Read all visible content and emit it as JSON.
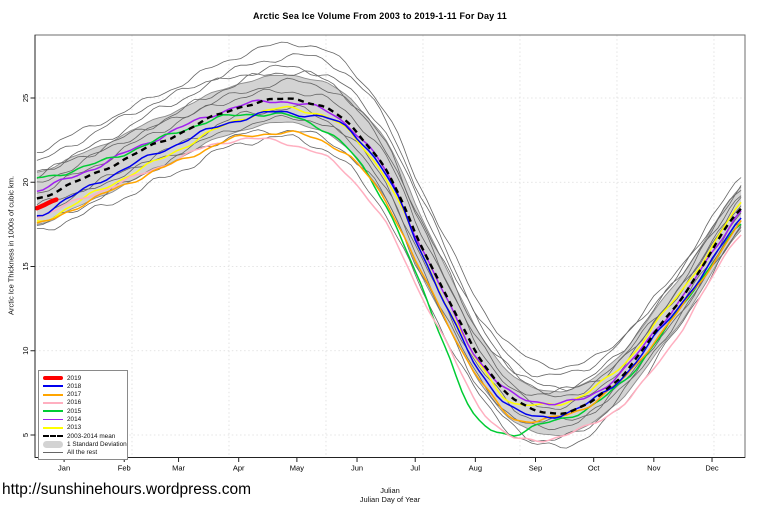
{
  "page": {
    "footer_link": "http://sunshinehours.wordpress.com"
  },
  "chart_data": {
    "type": "line",
    "title": "Arctic Sea Ice Volume From 2003 to 2019-1-11  For Day 11",
    "ylabel": "Arctic Ice Thickness in 1000s of cubic km.",
    "xlabel_line1": "Julian",
    "xlabel_line2": "Julian Day of Year",
    "ylim": [
      3.6,
      28.7
    ],
    "xlim_days": [
      1,
      366
    ],
    "y_ticks": [
      5,
      10,
      15,
      20,
      25
    ],
    "month_ticks": {
      "days": [
        15,
        46,
        74,
        105,
        135,
        166,
        196,
        227,
        258,
        288,
        319,
        349
      ],
      "labels": [
        "Jan",
        "Feb",
        "Mar",
        "Apr",
        "May",
        "Jun",
        "Jul",
        "Aug",
        "Sep",
        "Oct",
        "Nov",
        "Dec"
      ]
    },
    "grid": {
      "y_values": [
        5,
        10,
        15,
        20,
        25
      ],
      "x_days": [
        50,
        100,
        150,
        200,
        250,
        300,
        350
      ]
    },
    "control_days": [
      1,
      15,
      32,
      46,
      60,
      74,
      91,
      105,
      121,
      135,
      152,
      166,
      182,
      196,
      213,
      227,
      244,
      258,
      274,
      288,
      305,
      319,
      335,
      349,
      365
    ],
    "series": [
      {
        "label": "2013",
        "color": "#FFFF00",
        "values": [
          17.7,
          18.4,
          19.4,
          20.2,
          21.0,
          21.9,
          23.0,
          23.8,
          24.35,
          24.4,
          23.8,
          22.4,
          20.0,
          16.5,
          12.6,
          9.6,
          7.2,
          6.8,
          7.0,
          7.7,
          9.3,
          11.4,
          13.8,
          16.2,
          18.9
        ]
      },
      {
        "label": "2014",
        "color": "#A020F0",
        "values": [
          19.6,
          20.2,
          21.0,
          21.7,
          22.4,
          23.1,
          23.9,
          24.5,
          24.85,
          24.8,
          24.2,
          22.9,
          20.4,
          16.8,
          12.8,
          9.7,
          7.6,
          7.1,
          7.0,
          7.5,
          9.0,
          11.0,
          13.3,
          15.7,
          18.45
        ]
      },
      {
        "label": "2015",
        "color": "#00CC33",
        "values": [
          20.2,
          20.6,
          21.2,
          21.8,
          22.4,
          23.0,
          23.6,
          23.9,
          24.0,
          23.8,
          23.0,
          21.4,
          18.5,
          14.6,
          9.8,
          5.9,
          5.0,
          5.5,
          6.1,
          6.9,
          8.4,
          10.4,
          12.8,
          15.1,
          17.45
        ]
      },
      {
        "label": "2016",
        "color": "#FFAFC0",
        "values": [
          17.9,
          18.5,
          19.4,
          20.1,
          20.8,
          21.5,
          22.2,
          22.5,
          22.4,
          22.1,
          21.3,
          19.9,
          17.4,
          14.1,
          10.3,
          7.0,
          4.9,
          4.6,
          5.0,
          5.7,
          7.1,
          9.0,
          11.6,
          14.3,
          17.05
        ]
      },
      {
        "label": "2017",
        "color": "#FFA500",
        "values": [
          17.4,
          18.1,
          19.0,
          19.8,
          20.6,
          21.3,
          22.2,
          22.7,
          22.9,
          22.8,
          22.2,
          21.0,
          18.7,
          15.4,
          11.7,
          8.7,
          6.2,
          5.8,
          6.1,
          6.9,
          8.5,
          10.6,
          12.9,
          15.2,
          17.75
        ]
      },
      {
        "label": "2018",
        "color": "#0000EE",
        "values": [
          18.1,
          18.9,
          19.9,
          20.7,
          21.5,
          22.3,
          23.2,
          23.8,
          24.2,
          24.1,
          23.7,
          22.6,
          20.2,
          16.6,
          12.5,
          9.2,
          6.9,
          6.1,
          6.3,
          7.0,
          8.6,
          10.7,
          13.1,
          15.4,
          18.05
        ]
      }
    ],
    "series_2019": {
      "label": "2019",
      "color": "#FF0000",
      "days": [
        1,
        11
      ],
      "values": [
        18.5,
        18.95
      ]
    },
    "mean": {
      "label": "2003-2014 mean",
      "color": "#000000",
      "values": [
        19.0,
        19.7,
        20.6,
        21.4,
        22.2,
        22.9,
        23.8,
        24.4,
        24.8,
        24.9,
        24.3,
        23.0,
        20.6,
        17.0,
        13.1,
        9.9,
        7.4,
        6.4,
        6.4,
        7.1,
        8.9,
        11.0,
        13.4,
        15.9,
        18.5
      ]
    },
    "std_band": {
      "label": "1 Standard Deviation",
      "fill": "#D3D3D3",
      "edge": "#8C8C8C",
      "half_widths": [
        1.55,
        1.55,
        1.5,
        1.5,
        1.45,
        1.45,
        1.4,
        1.4,
        1.4,
        1.4,
        1.5,
        1.6,
        1.75,
        1.75,
        1.6,
        1.45,
        1.35,
        1.3,
        1.3,
        1.3,
        1.35,
        1.35,
        1.35,
        1.3,
        1.3
      ]
    },
    "rest": {
      "label": "All the rest",
      "color": "#666666",
      "offsets": [
        2.9,
        2.35,
        1.8,
        1.35,
        0.95,
        0.55,
        -0.6,
        -1.0,
        -1.55,
        -2.15
      ],
      "spread_days": [
        1,
        105,
        150,
        205,
        250,
        300,
        365
      ],
      "spread": [
        0.95,
        1.05,
        1.15,
        1.2,
        1.0,
        0.8,
        0.62
      ]
    }
  },
  "legend": {
    "entries": [
      {
        "label": "2019",
        "color": "#FF0000",
        "kind": "thick-line"
      },
      {
        "label": "2018",
        "color": "#0000EE",
        "kind": "line"
      },
      {
        "label": "2017",
        "color": "#FFA500",
        "kind": "line"
      },
      {
        "label": "2016",
        "color": "#FFAFC0",
        "kind": "line"
      },
      {
        "label": "2015",
        "color": "#00CC33",
        "kind": "line"
      },
      {
        "label": "2014",
        "color": "#A020F0",
        "kind": "line"
      },
      {
        "label": "2013",
        "color": "#FFFF00",
        "kind": "line"
      },
      {
        "label": "2003-2014 mean",
        "color": "#000000",
        "kind": "dash"
      },
      {
        "label": "1 Standard Deviation",
        "color": "#D3D3D3",
        "kind": "band"
      },
      {
        "label": "All the rest",
        "color": "#666666",
        "kind": "thin-line"
      }
    ]
  }
}
